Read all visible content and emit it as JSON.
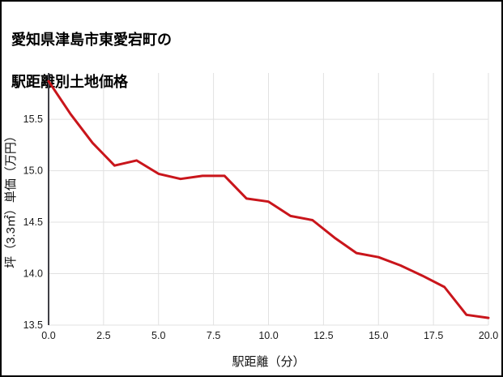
{
  "figure": {
    "title_line1": "愛知県津島市東愛宕町の",
    "title_line2": "駅距離別土地価格"
  },
  "chart_data": {
    "type": "line",
    "title": "愛知県津島市東愛宕町の駅距離別土地価格",
    "xlabel": "駅距離（分）",
    "ylabel": "坪（3.3㎡）単価（万円）",
    "x": [
      0,
      1,
      2,
      3,
      4,
      5,
      6,
      7,
      8,
      9,
      10,
      11,
      12,
      13,
      14,
      15,
      16,
      17,
      18,
      19,
      20
    ],
    "y": [
      15.87,
      15.55,
      15.27,
      15.05,
      15.1,
      14.97,
      14.92,
      14.95,
      14.95,
      14.73,
      14.7,
      14.56,
      14.52,
      14.35,
      14.2,
      14.16,
      14.08,
      13.98,
      13.87,
      13.6,
      13.57
    ],
    "xlim": [
      0,
      20
    ],
    "ylim": [
      13.5,
      15.95
    ],
    "xticks": [
      0,
      2.5,
      5,
      7.5,
      10,
      12.5,
      15,
      17.5,
      20
    ],
    "yticks": [
      13.5,
      14.0,
      14.5,
      15.0,
      15.5
    ],
    "grid": true,
    "legend": false,
    "colors": {
      "line": "#c9151b",
      "grid": "#e1e1e1",
      "spine": "#3f3f46",
      "tick_text": "#1a1a1a"
    }
  }
}
